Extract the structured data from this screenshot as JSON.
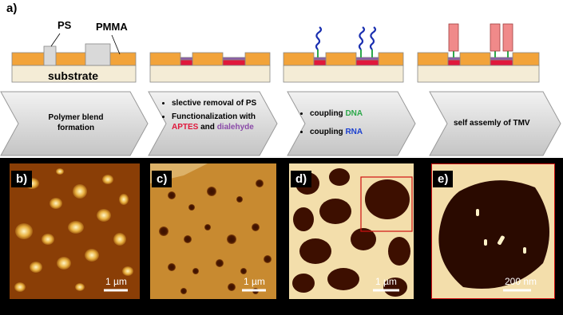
{
  "panel_a": {
    "label": "a)",
    "diagram_labels": {
      "ps": "PS",
      "pmma": "PMMA",
      "substrate": "substrate"
    },
    "steps": [
      {
        "text": "Polymer blend formation"
      },
      {
        "items": [
          "slective removal of PS",
          [
            "Functionalization with",
            "APTES",
            "and",
            "dialehyde"
          ]
        ]
      },
      {
        "items": [
          [
            "coupling",
            "DNA"
          ],
          [
            "coupling",
            "RNA"
          ]
        ]
      },
      {
        "text": "self assemly of TMV"
      }
    ]
  },
  "images": [
    {
      "label": "b)",
      "scale": "1 µm"
    },
    {
      "label": "c)",
      "scale": "1 µm"
    },
    {
      "label": "d)",
      "scale": "1 µm"
    },
    {
      "label": "e)",
      "scale": "200 nm"
    }
  ]
}
